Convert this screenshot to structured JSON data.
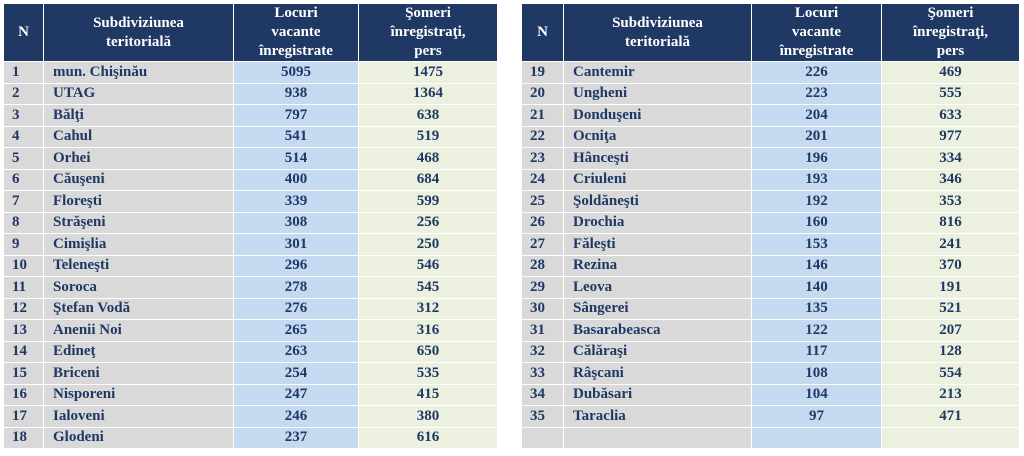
{
  "headers": {
    "n": "N",
    "sub_1": "Subdiviziunea",
    "sub_2": "teritorială",
    "loc_1": "Locuri",
    "loc_2": "vacante",
    "loc_3": "înregistrate",
    "som_1": "Şomeri",
    "som_2": "înregistraţi,",
    "som_3": "pers"
  },
  "left_rows": [
    {
      "n": "1",
      "name": "mun. Chişinău",
      "locuri": "5095",
      "someri": "1475"
    },
    {
      "n": "2",
      "name": "UTAG",
      "locuri": "938",
      "someri": "1364"
    },
    {
      "n": "3",
      "name": "Bălţi",
      "locuri": "797",
      "someri": "638"
    },
    {
      "n": "4",
      "name": "Cahul",
      "locuri": "541",
      "someri": "519"
    },
    {
      "n": "5",
      "name": "Orhei",
      "locuri": "514",
      "someri": "468"
    },
    {
      "n": "6",
      "name": "Căuşeni",
      "locuri": "400",
      "someri": "684"
    },
    {
      "n": "7",
      "name": "Floreşti",
      "locuri": "339",
      "someri": "599"
    },
    {
      "n": "8",
      "name": "Străşeni",
      "locuri": "308",
      "someri": "256"
    },
    {
      "n": "9",
      "name": "Cimişlia",
      "locuri": "301",
      "someri": "250"
    },
    {
      "n": "10",
      "name": "Teleneşti",
      "locuri": "296",
      "someri": "546"
    },
    {
      "n": "11",
      "name": "Soroca",
      "locuri": "278",
      "someri": "545"
    },
    {
      "n": "12",
      "name": "Ştefan Vodă",
      "locuri": "276",
      "someri": "312"
    },
    {
      "n": "13",
      "name": "Anenii Noi",
      "locuri": "265",
      "someri": "316"
    },
    {
      "n": "14",
      "name": "Edineţ",
      "locuri": "263",
      "someri": "650"
    },
    {
      "n": "15",
      "name": "Briceni",
      "locuri": "254",
      "someri": "535"
    },
    {
      "n": "16",
      "name": "Nisporeni",
      "locuri": "247",
      "someri": "415"
    },
    {
      "n": "17",
      "name": "Ialoveni",
      "locuri": "246",
      "someri": "380"
    },
    {
      "n": "18",
      "name": "Glodeni",
      "locuri": "237",
      "someri": "616"
    }
  ],
  "right_rows": [
    {
      "n": "19",
      "name": "Cantemir",
      "locuri": "226",
      "someri": "469"
    },
    {
      "n": "20",
      "name": "Ungheni",
      "locuri": "223",
      "someri": "555"
    },
    {
      "n": "21",
      "name": "Donduşeni",
      "locuri": "204",
      "someri": "633"
    },
    {
      "n": "22",
      "name": "Ocniţa",
      "locuri": "201",
      "someri": "977"
    },
    {
      "n": "23",
      "name": "Hânceşti",
      "locuri": "196",
      "someri": "334"
    },
    {
      "n": "24",
      "name": "Criuleni",
      "locuri": "193",
      "someri": "346"
    },
    {
      "n": "25",
      "name": "Şoldăneşti",
      "locuri": "192",
      "someri": "353"
    },
    {
      "n": "26",
      "name": "Drochia",
      "locuri": "160",
      "someri": "816"
    },
    {
      "n": "27",
      "name": "Făleşti",
      "locuri": "153",
      "someri": "241"
    },
    {
      "n": "28",
      "name": "Rezina",
      "locuri": "146",
      "someri": "370"
    },
    {
      "n": "29",
      "name": "Leova",
      "locuri": "140",
      "someri": "191"
    },
    {
      "n": "30",
      "name": "Sângerei",
      "locuri": "135",
      "someri": "521"
    },
    {
      "n": "31",
      "name": "Basarabeasca",
      "locuri": "122",
      "someri": "207"
    },
    {
      "n": "32",
      "name": "Călăraşi",
      "locuri": "117",
      "someri": "128"
    },
    {
      "n": "33",
      "name": "Râşcani",
      "locuri": "108",
      "someri": "554"
    },
    {
      "n": "34",
      "name": "Dubăsari",
      "locuri": "104",
      "someri": "213"
    },
    {
      "n": "35",
      "name": "Taraclia",
      "locuri": "97",
      "someri": "471"
    },
    {
      "n": "",
      "name": "",
      "locuri": "",
      "someri": ""
    }
  ]
}
